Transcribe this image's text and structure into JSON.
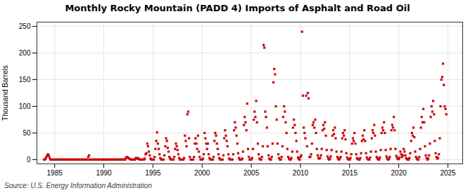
{
  "chart_data": {
    "type": "scatter",
    "title": "Monthly Rocky Mountain (PADD 4) Imports of Asphalt and Road Oil",
    "ylabel": "Thousand Barrels",
    "caption": "Source: U.S. Energy Information Administration",
    "color": "#cc0000",
    "marker": "square",
    "grid": true,
    "xlim": [
      1983.2,
      2026.5
    ],
    "ylim": [
      -8,
      258
    ],
    "xticks": [
      1985,
      1990,
      1995,
      2000,
      2005,
      2010,
      2015,
      2020,
      2025
    ],
    "yticks": [
      0,
      50,
      100,
      150,
      200,
      250
    ],
    "x": [
      1983.917,
      1984.0,
      1984.083,
      1984.167,
      1984.25,
      1984.333,
      1984.417,
      1984.5,
      1984.583,
      1984.667,
      1984.75,
      1984.833,
      1985.0,
      1985.083,
      1985.167,
      1985.25,
      1985.333,
      1985.417,
      1985.5,
      1985.583,
      1985.667,
      1985.75,
      1985.833,
      1985.917,
      1986.0,
      1986.083,
      1986.167,
      1986.25,
      1986.333,
      1986.417,
      1986.5,
      1986.583,
      1986.667,
      1986.75,
      1986.833,
      1986.917,
      1987.0,
      1987.083,
      1987.167,
      1987.25,
      1987.333,
      1987.417,
      1987.5,
      1987.583,
      1987.667,
      1987.75,
      1987.833,
      1987.917,
      1988.0,
      1988.083,
      1988.167,
      1988.25,
      1988.333,
      1988.417,
      1988.5,
      1988.583,
      1988.667,
      1988.75,
      1988.833,
      1988.917,
      1989.0,
      1989.083,
      1989.167,
      1989.25,
      1989.333,
      1989.417,
      1989.5,
      1989.583,
      1989.667,
      1989.75,
      1989.833,
      1989.917,
      1990.0,
      1990.083,
      1990.167,
      1990.25,
      1990.333,
      1990.417,
      1990.5,
      1990.583,
      1990.667,
      1990.75,
      1990.833,
      1990.917,
      1991.0,
      1991.083,
      1991.167,
      1991.25,
      1991.333,
      1991.417,
      1991.5,
      1991.583,
      1991.667,
      1991.75,
      1991.833,
      1991.917,
      1992.0,
      1992.083,
      1992.167,
      1992.25,
      1992.333,
      1992.417,
      1992.5,
      1992.583,
      1992.667,
      1992.75,
      1992.833,
      1992.917,
      1993.0,
      1993.083,
      1993.167,
      1993.25,
      1993.333,
      1993.417,
      1993.5,
      1993.583,
      1993.667,
      1993.75,
      1993.833,
      1993.917,
      1994.0,
      1994.083,
      1994.167,
      1994.25,
      1994.333,
      1994.417,
      1994.5,
      1994.583,
      1994.667,
      1994.75,
      1994.833,
      1994.917,
      1995.0,
      1995.083,
      1995.167,
      1995.25,
      1995.333,
      1995.417,
      1995.5,
      1995.583,
      1995.667,
      1995.75,
      1995.833,
      1995.917,
      1996.0,
      1996.083,
      1996.167,
      1996.25,
      1996.333,
      1996.417,
      1996.5,
      1996.583,
      1996.667,
      1996.75,
      1996.833,
      1996.917,
      1997.0,
      1997.083,
      1997.167,
      1997.25,
      1997.333,
      1997.417,
      1997.5,
      1997.583,
      1997.667,
      1997.75,
      1997.833,
      1997.917,
      1998.0,
      1998.083,
      1998.167,
      1998.25,
      1998.333,
      1998.417,
      1998.5,
      1998.583,
      1998.667,
      1998.75,
      1998.833,
      1998.917,
      1999.0,
      1999.083,
      1999.167,
      1999.25,
      1999.333,
      1999.417,
      1999.5,
      1999.583,
      1999.667,
      1999.75,
      1999.833,
      1999.917,
      2000.0,
      2000.083,
      2000.167,
      2000.25,
      2000.333,
      2000.417,
      2000.5,
      2000.583,
      2000.667,
      2000.75,
      2000.833,
      2000.917,
      2001.0,
      2001.083,
      2001.167,
      2001.25,
      2001.333,
      2001.417,
      2001.5,
      2001.583,
      2001.667,
      2001.75,
      2001.833,
      2001.917,
      2002.0,
      2002.083,
      2002.167,
      2002.25,
      2002.333,
      2002.417,
      2002.5,
      2002.583,
      2002.667,
      2002.75,
      2002.833,
      2002.917,
      2003.0,
      2003.083,
      2003.167,
      2003.25,
      2003.333,
      2003.417,
      2003.5,
      2003.583,
      2003.667,
      2003.75,
      2003.833,
      2003.917,
      2004.0,
      2004.083,
      2004.167,
      2004.25,
      2004.333,
      2004.417,
      2004.5,
      2004.583,
      2004.667,
      2004.75,
      2004.833,
      2004.917,
      2005.0,
      2005.083,
      2005.167,
      2005.25,
      2005.333,
      2005.417,
      2005.5,
      2005.583,
      2005.667,
      2005.75,
      2005.833,
      2005.917,
      2006.0,
      2006.083,
      2006.167,
      2006.25,
      2006.333,
      2006.417,
      2006.5,
      2006.583,
      2006.667,
      2006.75,
      2006.833,
      2006.917,
      2007.0,
      2007.083,
      2007.167,
      2007.25,
      2007.333,
      2007.417,
      2007.5,
      2007.583,
      2007.667,
      2007.75,
      2007.833,
      2007.917,
      2008.0,
      2008.083,
      2008.167,
      2008.25,
      2008.333,
      2008.417,
      2008.5,
      2008.583,
      2008.667,
      2008.75,
      2008.833,
      2008.917,
      2009.0,
      2009.083,
      2009.167,
      2009.25,
      2009.333,
      2009.417,
      2009.5,
      2009.583,
      2009.667,
      2009.75,
      2009.833,
      2009.917,
      2010.0,
      2010.083,
      2010.167,
      2010.25,
      2010.333,
      2010.417,
      2010.5,
      2010.583,
      2010.667,
      2010.75,
      2010.833,
      2010.917,
      2011.0,
      2011.083,
      2011.167,
      2011.25,
      2011.333,
      2011.417,
      2011.5,
      2011.583,
      2011.667,
      2011.75,
      2011.833,
      2011.917,
      2012.0,
      2012.083,
      2012.167,
      2012.25,
      2012.333,
      2012.417,
      2012.5,
      2012.583,
      2012.667,
      2012.75,
      2012.833,
      2012.917,
      2013.0,
      2013.083,
      2013.167,
      2013.25,
      2013.333,
      2013.417,
      2013.5,
      2013.583,
      2013.667,
      2013.75,
      2013.833,
      2013.917,
      2014.0,
      2014.083,
      2014.167,
      2014.25,
      2014.333,
      2014.417,
      2014.5,
      2014.583,
      2014.667,
      2014.75,
      2014.833,
      2014.917,
      2015.0,
      2015.083,
      2015.167,
      2015.25,
      2015.333,
      2015.417,
      2015.5,
      2015.583,
      2015.667,
      2015.75,
      2015.833,
      2015.917,
      2016.0,
      2016.083,
      2016.167,
      2016.25,
      2016.333,
      2016.417,
      2016.5,
      2016.583,
      2016.667,
      2016.75,
      2016.833,
      2016.917,
      2017.0,
      2017.083,
      2017.167,
      2017.25,
      2017.333,
      2017.417,
      2017.5,
      2017.583,
      2017.667,
      2017.75,
      2017.833,
      2017.917,
      2018.0,
      2018.083,
      2018.167,
      2018.25,
      2018.333,
      2018.417,
      2018.5,
      2018.583,
      2018.667,
      2018.75,
      2018.833,
      2018.917,
      2019.0,
      2019.083,
      2019.167,
      2019.25,
      2019.333,
      2019.417,
      2019.5,
      2019.583,
      2019.667,
      2019.75,
      2019.833,
      2019.917,
      2020.0,
      2020.083,
      2020.167,
      2020.25,
      2020.333,
      2020.417,
      2020.5,
      2020.583,
      2020.667,
      2020.75,
      2020.833,
      2020.917,
      2021.0,
      2021.083,
      2021.167,
      2021.25,
      2021.333,
      2021.417,
      2021.5,
      2021.583,
      2021.667,
      2021.75,
      2021.833,
      2021.917,
      2022.0,
      2022.083,
      2022.167,
      2022.25,
      2022.333,
      2022.417,
      2022.5,
      2022.583,
      2022.667,
      2022.75,
      2022.833,
      2022.917,
      2023.0,
      2023.083,
      2023.167,
      2023.25,
      2023.333,
      2023.417,
      2023.5,
      2023.583,
      2023.667,
      2023.75,
      2023.833,
      2023.917,
      2024.0,
      2024.083,
      2024.167,
      2024.25,
      2024.333,
      2024.417,
      2024.5,
      2024.583,
      2024.667,
      2024.75,
      2024.833
    ],
    "values": [
      0,
      0,
      2,
      5,
      8,
      10,
      7,
      3,
      0,
      0,
      0,
      0,
      0,
      0,
      0,
      0,
      0,
      0,
      0,
      0,
      0,
      0,
      0,
      0,
      0,
      0,
      0,
      0,
      0,
      0,
      0,
      0,
      0,
      0,
      0,
      0,
      0,
      0,
      0,
      0,
      0,
      0,
      0,
      0,
      0,
      0,
      0,
      0,
      0,
      0,
      0,
      0,
      0,
      5,
      8,
      0,
      0,
      0,
      0,
      0,
      0,
      0,
      0,
      0,
      0,
      0,
      0,
      0,
      0,
      0,
      0,
      0,
      0,
      0,
      0,
      0,
      0,
      0,
      0,
      0,
      0,
      0,
      0,
      0,
      0,
      0,
      0,
      0,
      0,
      0,
      0,
      0,
      0,
      0,
      0,
      0,
      0,
      0,
      0,
      3,
      5,
      4,
      3,
      2,
      1,
      0,
      0,
      0,
      0,
      0,
      0,
      3,
      2,
      3,
      2,
      1,
      0,
      0,
      0,
      0,
      0,
      0,
      2,
      10,
      12,
      30,
      25,
      15,
      8,
      2,
      0,
      0,
      0,
      0,
      5,
      20,
      35,
      51,
      30,
      20,
      10,
      3,
      0,
      0,
      0,
      0,
      8,
      25,
      40,
      35,
      22,
      15,
      5,
      2,
      0,
      0,
      0,
      0,
      5,
      20,
      30,
      25,
      18,
      10,
      3,
      0,
      0,
      0,
      0,
      0,
      3,
      45,
      35,
      25,
      85,
      90,
      40,
      5,
      0,
      0,
      0,
      0,
      5,
      30,
      40,
      30,
      20,
      45,
      15,
      5,
      0,
      0,
      0,
      2,
      10,
      50,
      40,
      30,
      20,
      30,
      10,
      3,
      0,
      0,
      0,
      0,
      5,
      35,
      50,
      45,
      30,
      20,
      10,
      3,
      0,
      0,
      0,
      0,
      8,
      40,
      55,
      45,
      35,
      25,
      10,
      2,
      0,
      0,
      0,
      0,
      10,
      55,
      70,
      60,
      45,
      30,
      12,
      3,
      0,
      0,
      0,
      2,
      15,
      65,
      80,
      70,
      55,
      105,
      20,
      5,
      0,
      0,
      0,
      3,
      20,
      75,
      90,
      80,
      110,
      70,
      30,
      10,
      2,
      0,
      0,
      5,
      25,
      215,
      210,
      90,
      80,
      60,
      25,
      8,
      2,
      0,
      0,
      5,
      30,
      145,
      170,
      160,
      100,
      75,
      30,
      10,
      3,
      0,
      0,
      5,
      25,
      80,
      100,
      90,
      70,
      50,
      20,
      5,
      2,
      0,
      0,
      3,
      15,
      60,
      75,
      65,
      50,
      35,
      15,
      4,
      1,
      0,
      5,
      8,
      240,
      120,
      60,
      50,
      40,
      120,
      25,
      125,
      115,
      5,
      5,
      10,
      30,
      65,
      70,
      60,
      75,
      50,
      20,
      8,
      3,
      2,
      3,
      8,
      20,
      55,
      65,
      58,
      70,
      45,
      18,
      6,
      2,
      0,
      2,
      6,
      18,
      45,
      55,
      48,
      60,
      40,
      15,
      5,
      2,
      0,
      2,
      5,
      15,
      40,
      50,
      45,
      55,
      38,
      12,
      4,
      1,
      0,
      0,
      3,
      10,
      30,
      40,
      35,
      50,
      30,
      10,
      3,
      1,
      0,
      0,
      3,
      12,
      35,
      45,
      38,
      55,
      35,
      12,
      4,
      1,
      0,
      0,
      4,
      15,
      40,
      55,
      50,
      65,
      45,
      15,
      5,
      2,
      0,
      0,
      4,
      18,
      50,
      60,
      55,
      70,
      50,
      18,
      6,
      2,
      0,
      1,
      5,
      20,
      55,
      65,
      60,
      80,
      55,
      20,
      7,
      3,
      1,
      1,
      4,
      15,
      10,
      5,
      8,
      20,
      15,
      8,
      3,
      1,
      0,
      0,
      3,
      12,
      35,
      50,
      45,
      60,
      42,
      15,
      5,
      2,
      0,
      0,
      5,
      20,
      60,
      80,
      70,
      95,
      70,
      25,
      8,
      3,
      0,
      2,
      8,
      30,
      80,
      100,
      90,
      110,
      85,
      35,
      12,
      5,
      2,
      3,
      10,
      40,
      100,
      150,
      155,
      180,
      140,
      100,
      95,
      85
    ]
  }
}
